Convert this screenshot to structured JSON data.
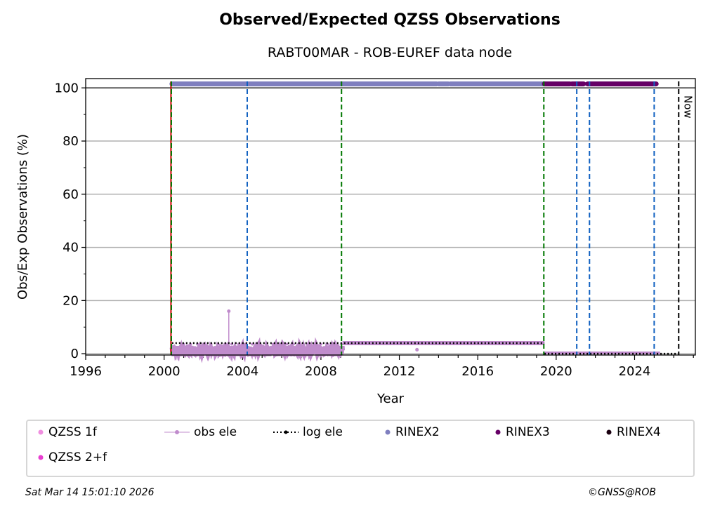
{
  "chart_data": {
    "type": "scatter",
    "title": "Observed/Expected QZSS Observations",
    "subtitle": "RABT00MAR - ROB-EUREF data node",
    "xlabel": "Year",
    "ylabel": "Obs/Exp Observations (%)",
    "xlim": [
      1996,
      2027.1
    ],
    "ylim": [
      -0.5,
      103.5
    ],
    "xticks": [
      "1996",
      "2000",
      "2004",
      "2008",
      "2012",
      "2016",
      "2020",
      "2024"
    ],
    "yticks": [
      "0",
      "20",
      "40",
      "60",
      "80",
      "100"
    ],
    "grid": "horizontal",
    "series": [
      {
        "name": "QZSS 1f",
        "color": "#f08ee0",
        "segments": []
      },
      {
        "name": "QZSS 2+f",
        "color": "#e83ed0",
        "segments": []
      },
      {
        "name": "obs ele",
        "color": "#c08ccc",
        "segments": [
          [
            2000.4,
            2009.1,
            1.2
          ],
          [
            2009.1,
            2019.4,
            4
          ]
        ],
        "extra_points": [
          [
            2003.3,
            16
          ],
          [
            2012.9,
            1.5
          ]
        ]
      },
      {
        "name": "log ele",
        "color": "#000000",
        "segments": [
          [
            2000.4,
            2019.4,
            4
          ],
          [
            2019.4,
            2026.2,
            0
          ]
        ]
      },
      {
        "name": "RINEX2",
        "color": "#7f7fbf",
        "segments": [
          [
            2000.4,
            2013.9,
            101.5
          ],
          [
            2014.0,
            2014.5,
            101.5
          ],
          [
            2014.6,
            2019.4,
            101.5
          ]
        ]
      },
      {
        "name": "RINEX3",
        "color": "#660066",
        "segments": [
          [
            2019.4,
            2020.7,
            101.5
          ],
          [
            2020.8,
            2021.4,
            101.5
          ],
          [
            2021.6,
            2025.1,
            101.5
          ]
        ]
      },
      {
        "name": "RINEX4",
        "color": "#1a0010",
        "segments": []
      }
    ],
    "vlines": [
      {
        "x": 2000.35,
        "color": "#cc0000",
        "style": "solid"
      },
      {
        "x": 2000.37,
        "color": "#007700",
        "style": "dashed"
      },
      {
        "x": 2009.05,
        "color": "#007700",
        "style": "dashed"
      },
      {
        "x": 2019.37,
        "color": "#007700",
        "style": "dashed"
      },
      {
        "x": 2004.24,
        "color": "#1060c0",
        "style": "dashed"
      },
      {
        "x": 2021.05,
        "color": "#1060c0",
        "style": "dashed"
      },
      {
        "x": 2021.7,
        "color": "#1060c0",
        "style": "dashed"
      },
      {
        "x": 2025.0,
        "color": "#1060c0",
        "style": "dashed"
      },
      {
        "x": 2026.25,
        "color": "#000000",
        "style": "dashed",
        "label": "Now"
      }
    ],
    "legend": "bottom"
  },
  "footer": {
    "date": "Sat Mar 14 15:01:10 2026",
    "credit": "©GNSS@ROB"
  }
}
